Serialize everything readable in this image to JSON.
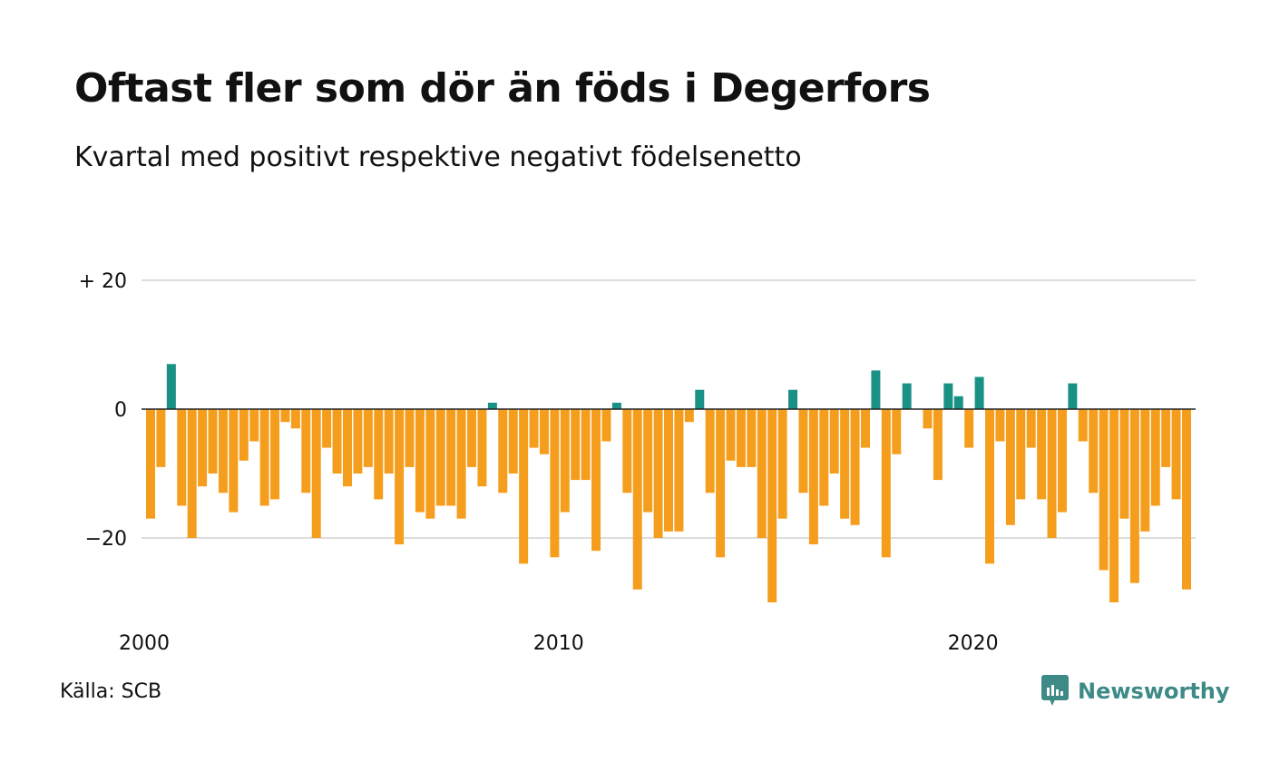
{
  "title": "Oftast fler som dör än föds i Degerfors",
  "subtitle": "Kvartal med positivt respektive negativt födelsenetto",
  "source": "Källa: SCB",
  "logo_text": "Newsworthy",
  "colors": {
    "positive": "#1a9185",
    "negative": "#f59e1d",
    "grid": "#dddddd",
    "zero_line": "#222222",
    "logo": "#3d8a86"
  },
  "chart_data": {
    "type": "bar",
    "ylim": [
      -30,
      25
    ],
    "yticks": [
      {
        "value": 20,
        "label": "+ 20"
      },
      {
        "value": 0,
        "label": "0"
      },
      {
        "value": -20,
        "label": "−20"
      }
    ],
    "xticks": [
      {
        "index": 0,
        "label": "2000"
      },
      {
        "index": 40,
        "label": "2010"
      },
      {
        "index": 80,
        "label": "2020"
      }
    ],
    "grid": true,
    "legend": "none",
    "first_period": "2000 Q1",
    "period": "quarter",
    "values": [
      -17,
      -9,
      7,
      -15,
      -20,
      -12,
      -10,
      -13,
      -16,
      -8,
      -5,
      -15,
      -14,
      -2,
      -3,
      -13,
      -20,
      -6,
      -10,
      -12,
      -10,
      -9,
      -14,
      -10,
      -21,
      -9,
      -16,
      -17,
      -15,
      -15,
      -17,
      -9,
      -12,
      1,
      -13,
      -10,
      -24,
      -6,
      -7,
      -23,
      -16,
      -11,
      -11,
      -22,
      -5,
      1,
      -13,
      -28,
      -16,
      -20,
      -19,
      -19,
      -2,
      3,
      -13,
      -23,
      -8,
      -9,
      -9,
      -20,
      -30,
      -17,
      3,
      -13,
      -21,
      -15,
      -10,
      -17,
      -18,
      -6,
      6,
      -23,
      -7,
      4,
      0,
      -3,
      -11,
      4,
      2,
      -6,
      5,
      -24,
      -5,
      -18,
      -14,
      -6,
      -14,
      -20,
      -16,
      4,
      -5,
      -13,
      -25,
      -30,
      -17,
      -27,
      -19,
      -15,
      -9,
      -14,
      -28
    ]
  }
}
